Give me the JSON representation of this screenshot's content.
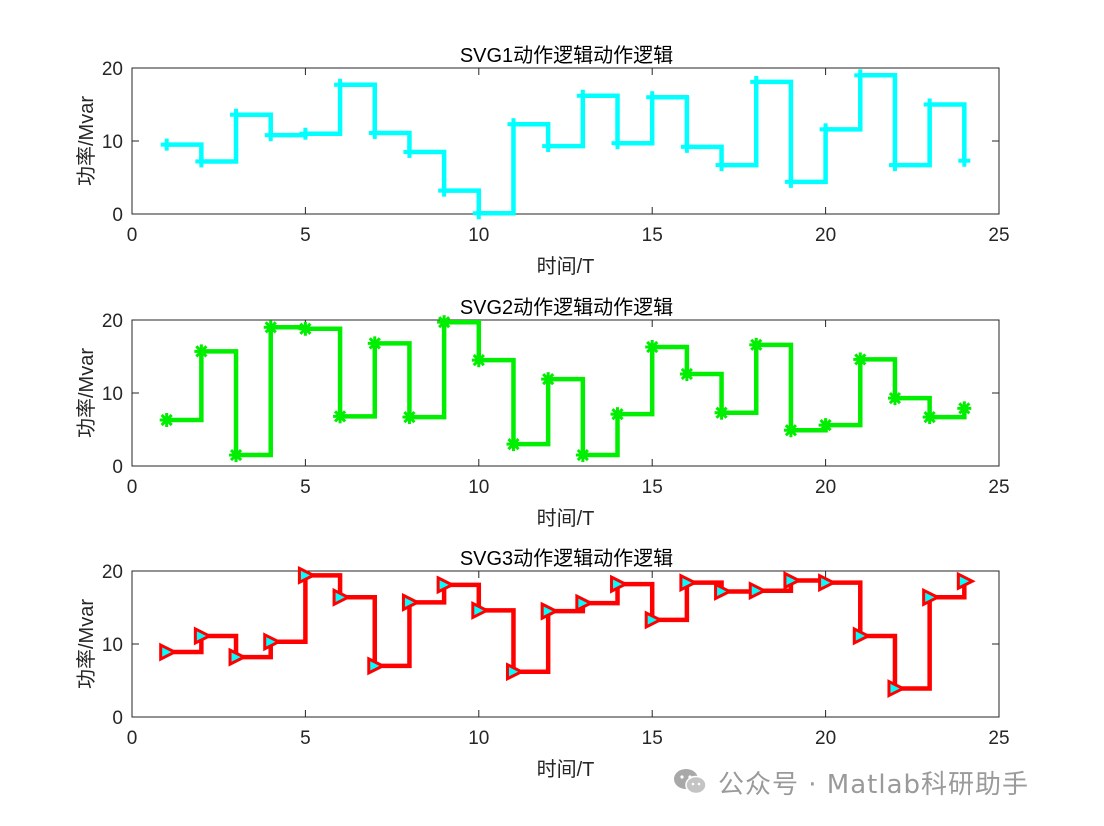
{
  "chart_data": [
    {
      "type": "line",
      "step": true,
      "title": "SVG1动作逻辑动作逻辑",
      "xlabel": "时间/T",
      "ylabel": "功率/Mvar",
      "xlim": [
        0,
        25
      ],
      "ylim": [
        0,
        20
      ],
      "xticks": [
        "0",
        "5",
        "10",
        "15",
        "20",
        "25"
      ],
      "yticks": [
        "0",
        "10",
        "20"
      ],
      "grid": false,
      "color": "#00ffff",
      "marker": "plus",
      "x": [
        1,
        2,
        3,
        4,
        5,
        6,
        7,
        8,
        9,
        10,
        11,
        12,
        13,
        14,
        15,
        16,
        17,
        18,
        19,
        20,
        21,
        22,
        23,
        24
      ],
      "y": [
        9.5,
        7.2,
        13.6,
        10.8,
        11.0,
        17.7,
        11.1,
        8.5,
        3.2,
        0.1,
        12.3,
        9.3,
        16.2,
        9.7,
        16.0,
        9.2,
        6.7,
        18.1,
        4.4,
        11.6,
        19.0,
        6.7,
        15.0,
        7.3
      ]
    },
    {
      "type": "line",
      "step": true,
      "title": "SVG2动作逻辑动作逻辑",
      "xlabel": "时间/T",
      "ylabel": "功率/Mvar",
      "xlim": [
        0,
        25
      ],
      "ylim": [
        0,
        20
      ],
      "xticks": [
        "0",
        "5",
        "10",
        "15",
        "20",
        "25"
      ],
      "yticks": [
        "0",
        "10",
        "20"
      ],
      "grid": false,
      "color": "#00ee00",
      "marker": "asterisk",
      "x": [
        1,
        2,
        3,
        4,
        5,
        6,
        7,
        8,
        9,
        10,
        11,
        12,
        13,
        14,
        15,
        16,
        17,
        18,
        19,
        20,
        21,
        22,
        23,
        24
      ],
      "y": [
        6.3,
        15.7,
        1.5,
        19.0,
        18.8,
        6.8,
        16.8,
        6.7,
        19.7,
        14.5,
        3.0,
        11.9,
        1.5,
        7.1,
        16.3,
        12.6,
        7.3,
        16.6,
        4.9,
        5.6,
        14.6,
        9.3,
        6.7,
        7.9
      ]
    },
    {
      "type": "line",
      "step": true,
      "title": "SVG3动作逻辑动作逻辑",
      "xlabel": "时间/T",
      "ylabel": "功率/Mvar",
      "xlim": [
        0,
        25
      ],
      "ylim": [
        0,
        20
      ],
      "xticks": [
        "0",
        "5",
        "10",
        "15",
        "20",
        "25"
      ],
      "yticks": [
        "0",
        "10",
        "20"
      ],
      "grid": false,
      "color": "#ff0000",
      "marker": "triangle-right",
      "marker_fill": "#00ffff",
      "x": [
        1,
        2,
        3,
        4,
        5,
        6,
        7,
        8,
        9,
        10,
        11,
        12,
        13,
        14,
        15,
        16,
        17,
        18,
        19,
        20,
        21,
        22,
        23,
        24
      ],
      "y": [
        8.9,
        11.1,
        8.2,
        10.3,
        19.4,
        16.4,
        7.0,
        15.7,
        18.1,
        14.6,
        6.2,
        14.5,
        15.6,
        18.2,
        13.3,
        18.4,
        17.2,
        17.3,
        18.7,
        18.4,
        11.1,
        3.9,
        16.4,
        18.6
      ]
    }
  ],
  "watermark": {
    "icon": "wechat-icon",
    "text": "公众号 · Matlab科研助手"
  }
}
